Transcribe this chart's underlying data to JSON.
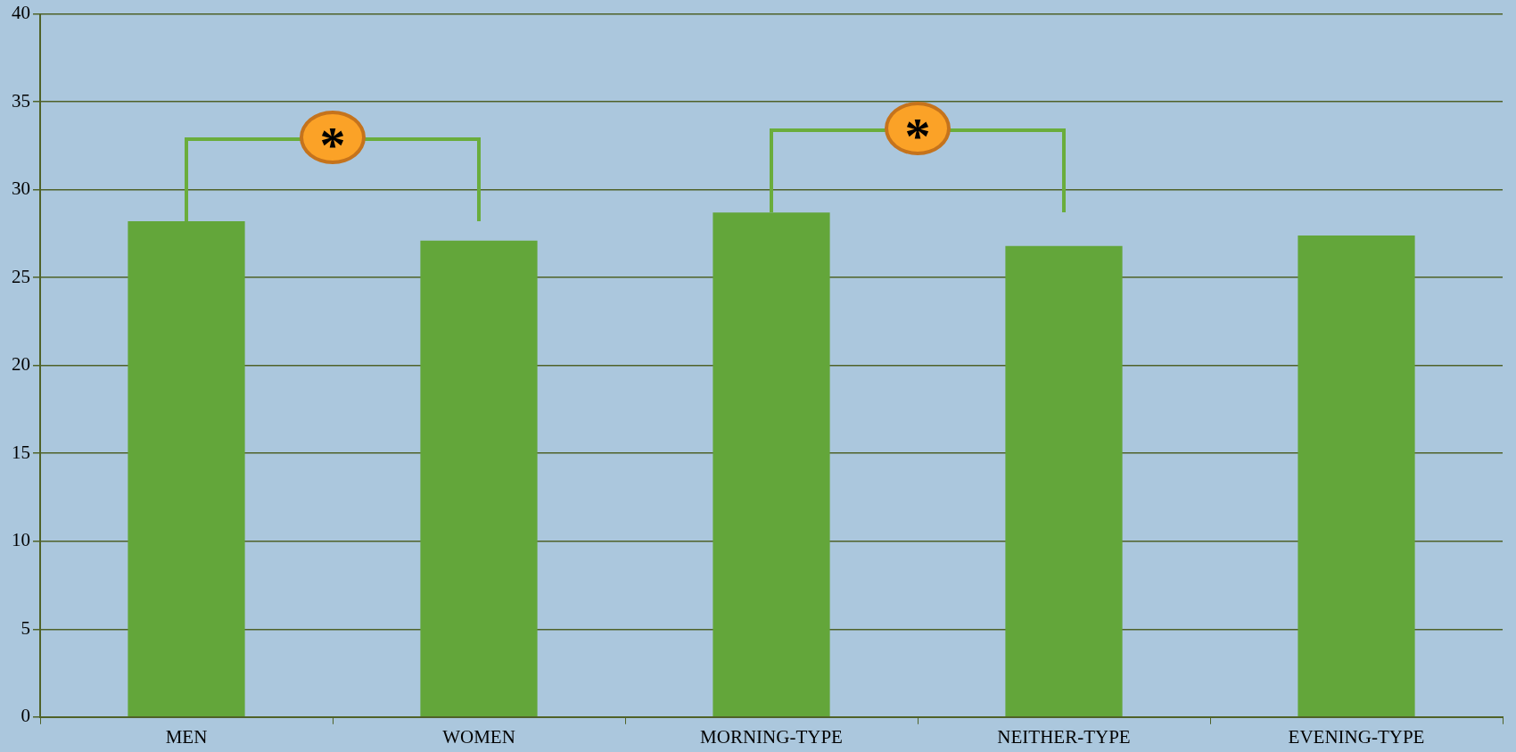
{
  "chart_data": {
    "type": "bar",
    "categories": [
      "MEN",
      "WOMEN",
      "MORNING-TYPE",
      "NEITHER-TYPE",
      "EVENING-TYPE"
    ],
    "values": [
      28.2,
      27.1,
      28.7,
      26.8,
      27.4
    ],
    "color": "#63a63a",
    "ylim": [
      0,
      40
    ],
    "yticks": [
      0,
      5,
      10,
      15,
      20,
      25,
      30,
      35,
      40
    ],
    "grid": "y",
    "legend": false,
    "annotations": [
      "*",
      "*"
    ]
  }
}
